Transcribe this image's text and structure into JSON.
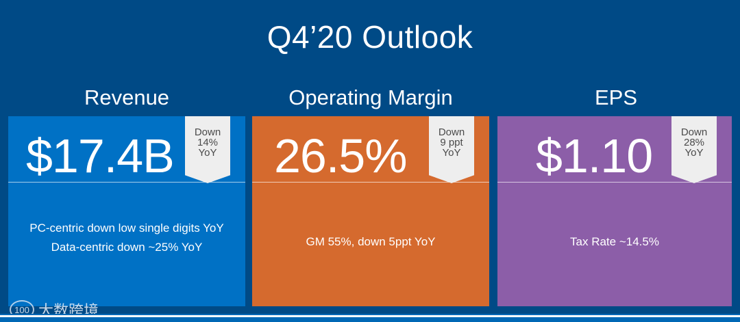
{
  "slide": {
    "title": "Q4’20 Outlook",
    "colors": {
      "background": "#004a86",
      "bottom_bar": "#0068b5"
    }
  },
  "cards": [
    {
      "heading": "Revenue",
      "metric": "$17.4B",
      "badge": [
        "Down",
        "14%",
        "YoY"
      ],
      "notes": [
        "PC-centric down low single digits YoY",
        "Data-centric down ~25% YoY"
      ],
      "color": "#0071c5"
    },
    {
      "heading": "Operating Margin",
      "metric": "26.5%",
      "badge": [
        "Down",
        "9 ppt",
        "YoY"
      ],
      "notes": [
        "GM 55%, down 5ppt YoY"
      ],
      "color": "#d56a2e"
    },
    {
      "heading": "EPS",
      "metric": "$1.10",
      "badge": [
        "Down",
        "28%",
        "YoY"
      ],
      "notes": [
        "Tax Rate ~14.5%"
      ],
      "color": "#8c5ea8"
    }
  ],
  "watermark": {
    "logo_text": "100",
    "text": "大数跨境"
  }
}
